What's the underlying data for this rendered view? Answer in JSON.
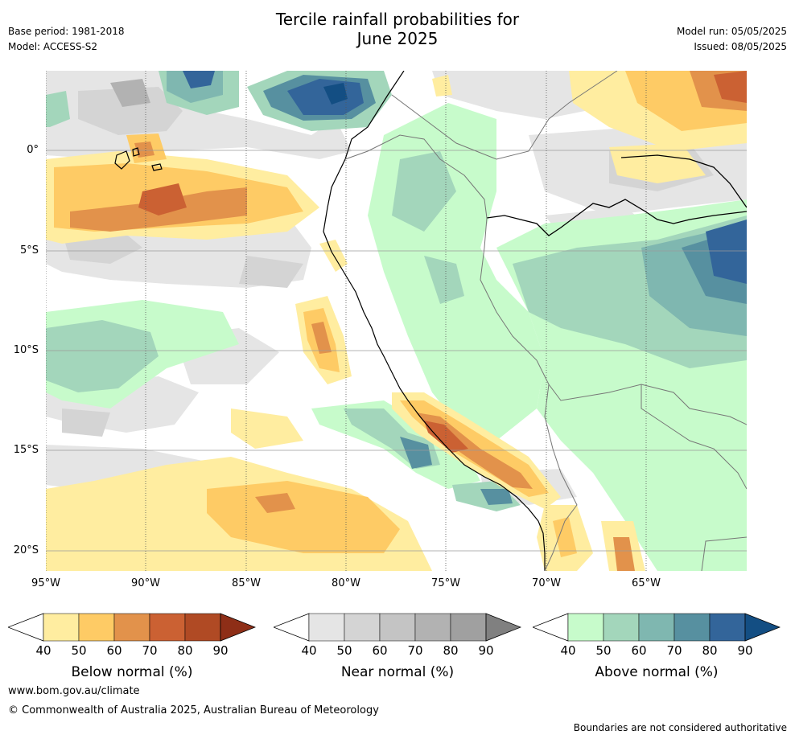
{
  "title": {
    "line1": "Tercile rainfall probabilities for",
    "line2": "June 2025"
  },
  "meta_left": {
    "base_period": "Base period: 1981-2018",
    "model": "Model: ACCESS-S2"
  },
  "meta_right": {
    "model_run": "Model run: 05/05/2025",
    "issued": "Issued: 08/05/2025"
  },
  "axes": {
    "lat_labels": [
      "0°",
      "5°S",
      "10°S",
      "15°S",
      "20°S"
    ],
    "lon_labels": [
      "95°W",
      "90°W",
      "85°W",
      "80°W",
      "75°W",
      "70°W",
      "65°W"
    ]
  },
  "colorbars": [
    {
      "title": "Below normal (%)",
      "ticks": [
        "40",
        "50",
        "60",
        "70",
        "80",
        "90"
      ],
      "colors": [
        "#ffffff",
        "#ffeda0",
        "#fecb65",
        "#e2924b",
        "#cb6133",
        "#b04a24",
        "#8e2e17"
      ]
    },
    {
      "title": "Near normal (%)",
      "ticks": [
        "40",
        "50",
        "60",
        "70",
        "80",
        "90"
      ],
      "colors": [
        "#ffffff",
        "#e5e5e5",
        "#d4d4d4",
        "#c4c4c4",
        "#b2b2b2",
        "#a0a0a0",
        "#808080"
      ]
    },
    {
      "title": "Above normal (%)",
      "ticks": [
        "40",
        "50",
        "60",
        "70",
        "80",
        "90"
      ],
      "colors": [
        "#ffffff",
        "#c7fbcb",
        "#a3d6bb",
        "#7fb7b0",
        "#5790a0",
        "#33659a",
        "#134e83"
      ]
    }
  ],
  "footer": {
    "website": "www.bom.gov.au/climate",
    "copyright": "© Commonwealth of Australia 2025, Australian Bureau of Meteorology",
    "disclaimer": "Boundaries are not considered authoritative"
  }
}
